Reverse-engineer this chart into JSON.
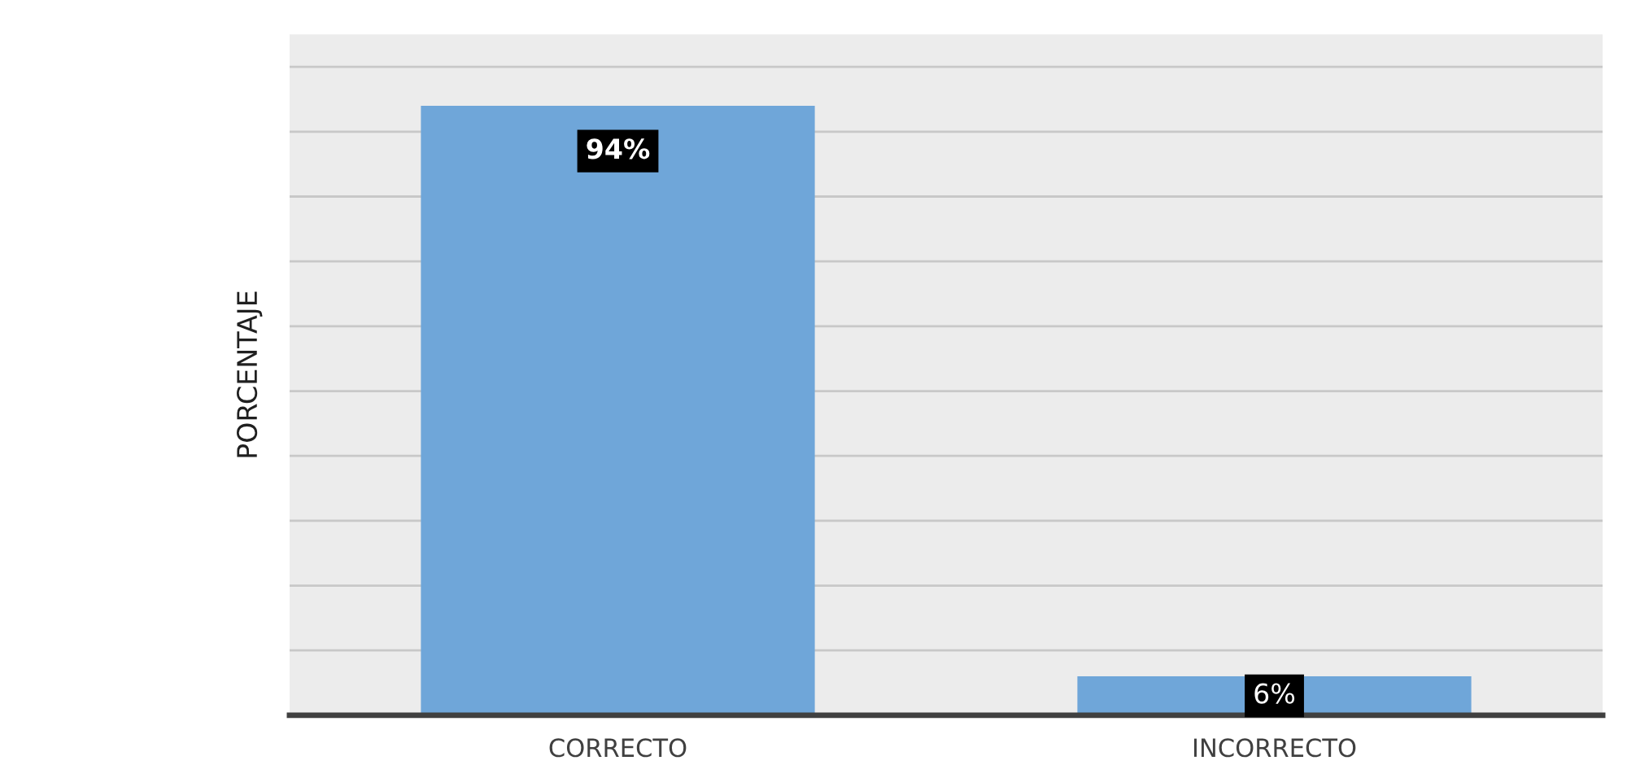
{
  "chart_data": {
    "type": "bar",
    "ylabel": "PORCENTAJE",
    "categories": [
      "CORRECTO",
      "INCORRECTO"
    ],
    "values": [
      94,
      6
    ],
    "color": "#6fa6d9",
    "value_labels": [
      "94%",
      "6%"
    ],
    "ylim": [
      0,
      105
    ],
    "yticks": [
      {
        "value": 0,
        "label": null
      },
      {
        "value": 10,
        "label": null
      },
      {
        "value": 20,
        "label": null
      },
      {
        "value": 30,
        "label": null
      },
      {
        "value": 40,
        "label": null
      },
      {
        "value": 50,
        "label": null
      },
      {
        "value": 60,
        "label": null
      },
      {
        "value": 70,
        "label": null
      },
      {
        "value": 80,
        "label": null
      },
      {
        "value": 90,
        "label": null
      },
      {
        "value": 100,
        "label": null
      }
    ],
    "tick_labels": "x",
    "grid": "y"
  }
}
